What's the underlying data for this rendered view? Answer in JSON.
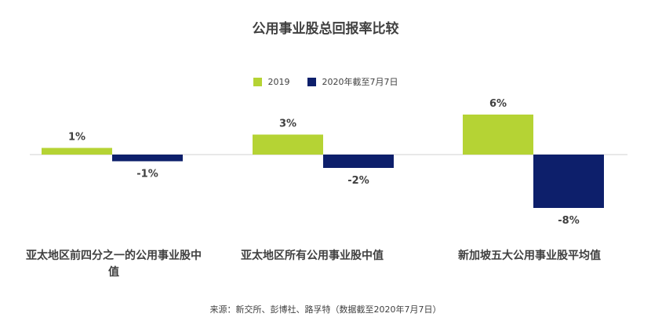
{
  "chart_data": {
    "type": "bar",
    "title": "公用事业股总回报率比较",
    "categories": [
      "亚太地区前四分之一的公用事业股中值",
      "亚太地区所有公用事业股中值",
      "新加坡五大公用事业股平均值"
    ],
    "series": [
      {
        "name": "2019",
        "values": [
          1,
          3,
          6
        ],
        "labels": [
          "1%",
          "3%",
          "6%"
        ],
        "color": "#b5d334"
      },
      {
        "name": "2020年截至7月7日",
        "values": [
          -1,
          -2,
          -8
        ],
        "labels": [
          "-1%",
          "-2%",
          "-8%"
        ],
        "color": "#0d1f6b"
      }
    ],
    "xlabel": "",
    "ylabel": "",
    "legend": "top-center",
    "grid": false
  },
  "source_note": "来源：新交所、彭博社、路孚特（数据截至2020年7月7日）"
}
